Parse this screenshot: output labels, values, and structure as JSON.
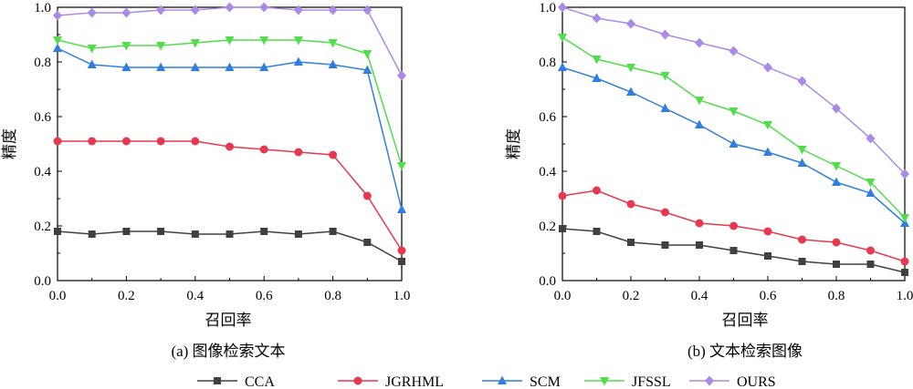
{
  "colors": {
    "CCA": "#404040",
    "JGRHML": "#e8384f",
    "SCM": "#2f7ee0",
    "JFSSL": "#52dd4a",
    "OURS": "#a98ae6"
  },
  "legend": {
    "placement": "bottom-center",
    "entries": [
      {
        "name": "CCA",
        "marker": "square"
      },
      {
        "name": "JGRHML",
        "marker": "circle"
      },
      {
        "name": "SCM",
        "marker": "triangle-up"
      },
      {
        "name": "JFSSL",
        "marker": "triangle-down"
      },
      {
        "name": "OURS",
        "marker": "diamond"
      }
    ]
  },
  "chart_data": [
    {
      "type": "line",
      "caption": "(a) 图像检索文本",
      "xlabel": "召回率",
      "ylabel": "精度",
      "xlim": [
        0,
        1
      ],
      "ylim": [
        0,
        1
      ],
      "xticks": [
        "0.0",
        "0.2",
        "0.4",
        "0.6",
        "0.8",
        "1.0"
      ],
      "yticks": [
        "0.0",
        "0.2",
        "0.4",
        "0.6",
        "0.8",
        "1.0"
      ],
      "grid": false,
      "x": [
        0.0,
        0.1,
        0.2,
        0.3,
        0.4,
        0.5,
        0.6,
        0.7,
        0.8,
        0.9,
        1.0
      ],
      "series": [
        {
          "name": "CCA",
          "values": [
            0.18,
            0.17,
            0.18,
            0.18,
            0.17,
            0.17,
            0.18,
            0.17,
            0.18,
            0.14,
            0.07
          ]
        },
        {
          "name": "JGRHML",
          "values": [
            0.51,
            0.51,
            0.51,
            0.51,
            0.51,
            0.49,
            0.48,
            0.47,
            0.46,
            0.31,
            0.11
          ]
        },
        {
          "name": "SCM",
          "values": [
            0.85,
            0.79,
            0.78,
            0.78,
            0.78,
            0.78,
            0.78,
            0.8,
            0.79,
            0.77,
            0.26
          ]
        },
        {
          "name": "JFSSL",
          "values": [
            0.88,
            0.85,
            0.86,
            0.86,
            0.87,
            0.88,
            0.88,
            0.88,
            0.87,
            0.83,
            0.42
          ]
        },
        {
          "name": "OURS",
          "values": [
            0.97,
            0.98,
            0.98,
            0.99,
            0.99,
            1.0,
            1.0,
            0.99,
            0.99,
            0.99,
            0.75
          ]
        }
      ]
    },
    {
      "type": "line",
      "caption": "(b) 文本检索图像",
      "xlabel": "召回率",
      "ylabel": "精度",
      "xlim": [
        0,
        1
      ],
      "ylim": [
        0,
        1
      ],
      "xticks": [
        "0.0",
        "0.2",
        "0.4",
        "0.6",
        "0.8",
        "1.0"
      ],
      "yticks": [
        "0.0",
        "0.2",
        "0.4",
        "0.6",
        "0.8",
        "1.0"
      ],
      "grid": false,
      "x": [
        0.0,
        0.1,
        0.2,
        0.3,
        0.4,
        0.5,
        0.6,
        0.7,
        0.8,
        0.9,
        1.0
      ],
      "series": [
        {
          "name": "CCA",
          "values": [
            0.19,
            0.18,
            0.14,
            0.13,
            0.13,
            0.11,
            0.09,
            0.07,
            0.06,
            0.06,
            0.03
          ]
        },
        {
          "name": "JGRHML",
          "values": [
            0.31,
            0.33,
            0.28,
            0.25,
            0.21,
            0.2,
            0.18,
            0.15,
            0.14,
            0.11,
            0.07
          ]
        },
        {
          "name": "SCM",
          "values": [
            0.78,
            0.74,
            0.69,
            0.63,
            0.57,
            0.5,
            0.47,
            0.43,
            0.36,
            0.32,
            0.21
          ]
        },
        {
          "name": "JFSSL",
          "values": [
            0.89,
            0.81,
            0.78,
            0.75,
            0.66,
            0.62,
            0.57,
            0.48,
            0.42,
            0.36,
            0.23
          ]
        },
        {
          "name": "OURS",
          "values": [
            1.0,
            0.96,
            0.94,
            0.9,
            0.87,
            0.84,
            0.78,
            0.73,
            0.63,
            0.52,
            0.39
          ]
        }
      ]
    }
  ]
}
